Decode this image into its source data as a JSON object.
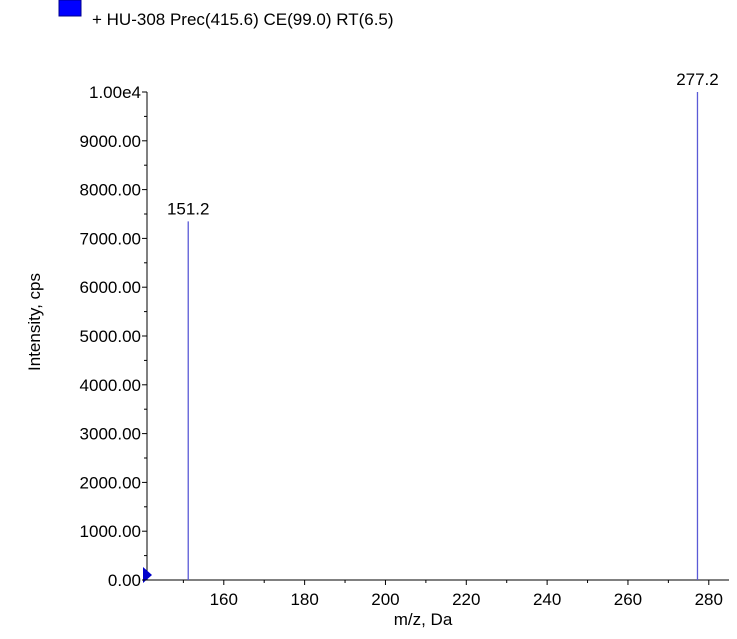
{
  "chart_data": {
    "type": "bar",
    "title": "",
    "xlabel": "m/z, Da",
    "ylabel": "Intensity, cps",
    "xlim": [
      141,
      285
    ],
    "ylim": [
      0,
      10000
    ],
    "x_ticks": [
      160,
      180,
      200,
      220,
      240,
      260,
      280
    ],
    "y_ticks": [
      0,
      1000,
      2000,
      3000,
      4000,
      5000,
      6000,
      7000,
      8000,
      9000,
      10000
    ],
    "y_tick_labels": [
      "0.00",
      "1000.00",
      "2000.00",
      "3000.00",
      "4000.00",
      "5000.00",
      "6000.00",
      "7000.00",
      "8000.00",
      "9000.00",
      "1.00e4"
    ],
    "grid": false,
    "legend_position": "top-left",
    "series": [
      {
        "name": "+ HU-308 Prec(415.6) CE(99.0) RT(6.5)",
        "color": "#0000ff",
        "line_color": "#5a5ad6",
        "points": [
          {
            "x": 151.2,
            "y": 7350,
            "label": "151.2"
          },
          {
            "x": 277.2,
            "y": 10000,
            "label": "277.2"
          }
        ]
      }
    ]
  }
}
